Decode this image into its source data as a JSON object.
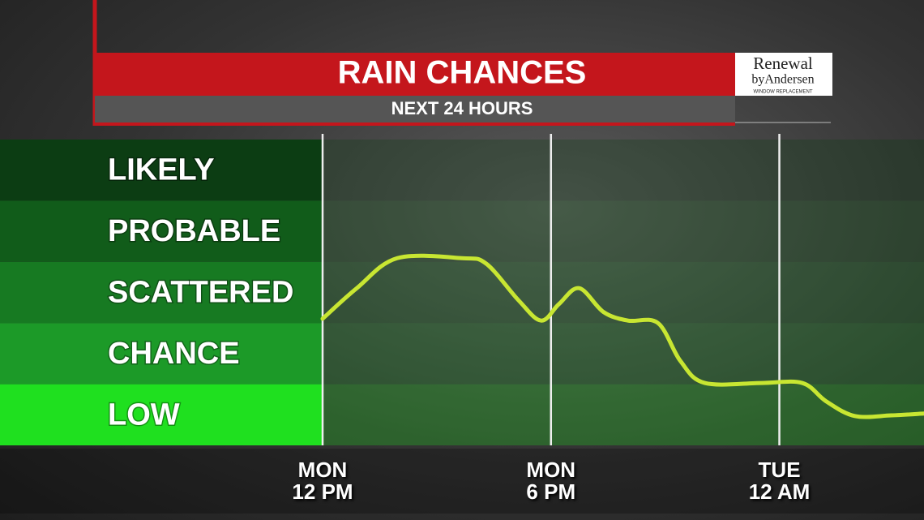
{
  "chart_data": {
    "type": "line",
    "title": "RAIN CHANCES",
    "subtitle": "NEXT 24 HOURS",
    "sponsor": {
      "name": "Renewal",
      "by": "byAndersen",
      "tagline": "WINDOW REPLACEMENT"
    },
    "x": [
      0,
      0.9,
      1.96,
      3.66,
      4.3,
      5.15,
      5.74,
      6.21,
      6.74,
      7.38,
      8.02,
      8.81,
      9.4,
      10.04,
      11.53,
      12.6,
      13.23,
      13.98,
      14.94,
      15.8
    ],
    "series": [
      {
        "color": "#c8e632",
        "values": [
          2.07,
          2.57,
          3.06,
          3.06,
          2.97,
          2.37,
          2.04,
          2.31,
          2.57,
          2.18,
          2.04,
          2.0,
          1.38,
          1.02,
          1.02,
          1.02,
          0.72,
          0.48,
          0.49,
          0.52
        ]
      }
    ],
    "xlim": [
      0,
      15.8
    ],
    "xticks": [
      {
        "value": 0,
        "label": "MON\n12 PM"
      },
      {
        "value": 6,
        "label": "MON\n6 PM"
      },
      {
        "value": 12,
        "label": "TUE\n12 AM"
      }
    ],
    "ylim": [
      0,
      5
    ],
    "yticks": [
      {
        "value": 0.5,
        "label": "LOW"
      },
      {
        "value": 1.5,
        "label": "CHANCE"
      },
      {
        "value": 2.5,
        "label": "SCATTERED"
      },
      {
        "value": 3.5,
        "label": "PROBABLE"
      },
      {
        "value": 4.5,
        "label": "LIKELY"
      }
    ],
    "level_colors": [
      "#1fe01f",
      "#1c9a28",
      "#177a22",
      "#115c1a",
      "#0c3d13"
    ],
    "grid": true
  }
}
